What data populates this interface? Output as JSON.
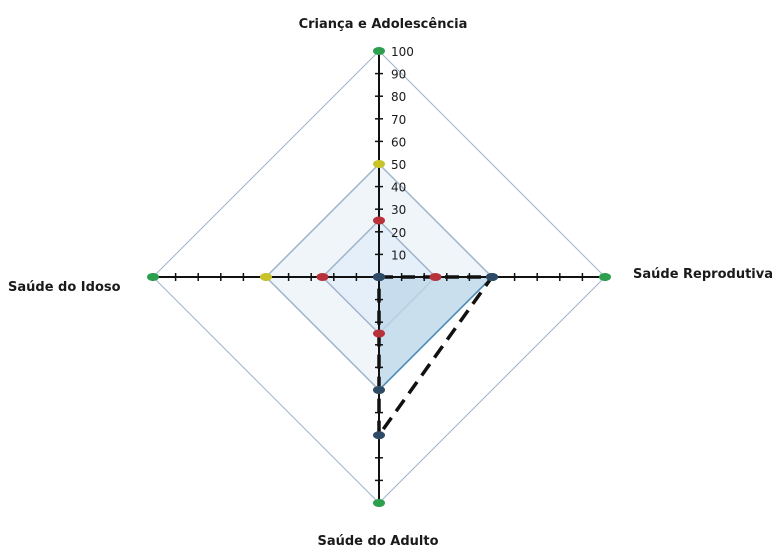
{
  "chart_data": {
    "type": "radar",
    "title": "",
    "axes": [
      "Criança e Adolescência",
      "Saúde Reprodutiva",
      "Saúde do Adulto",
      "Saúde do Idoso"
    ],
    "scale": {
      "min": 0,
      "max": 100,
      "step": 10
    },
    "tick_labels": [
      "10",
      "20",
      "30",
      "40",
      "50",
      "60",
      "70",
      "80",
      "90",
      "100"
    ],
    "reference_rings": [
      {
        "value": 100,
        "marker_color": "#2e9e4f"
      },
      {
        "value": 50,
        "marker_color": "#c9c32a"
      },
      {
        "value": 25,
        "marker_color": "#b8323c"
      }
    ],
    "series": [
      {
        "values": [
          0,
          50,
          50,
          0
        ],
        "fill": "#bcd7e8",
        "stroke": "#4a88b5",
        "style": "solid"
      },
      {
        "values": [
          0,
          50,
          70,
          0
        ],
        "stroke": "#111111",
        "style": "dashed"
      }
    ],
    "colors": {
      "axis": "#111111",
      "ring": "#9fb3cc",
      "center_fill": "#e3eef8"
    }
  }
}
